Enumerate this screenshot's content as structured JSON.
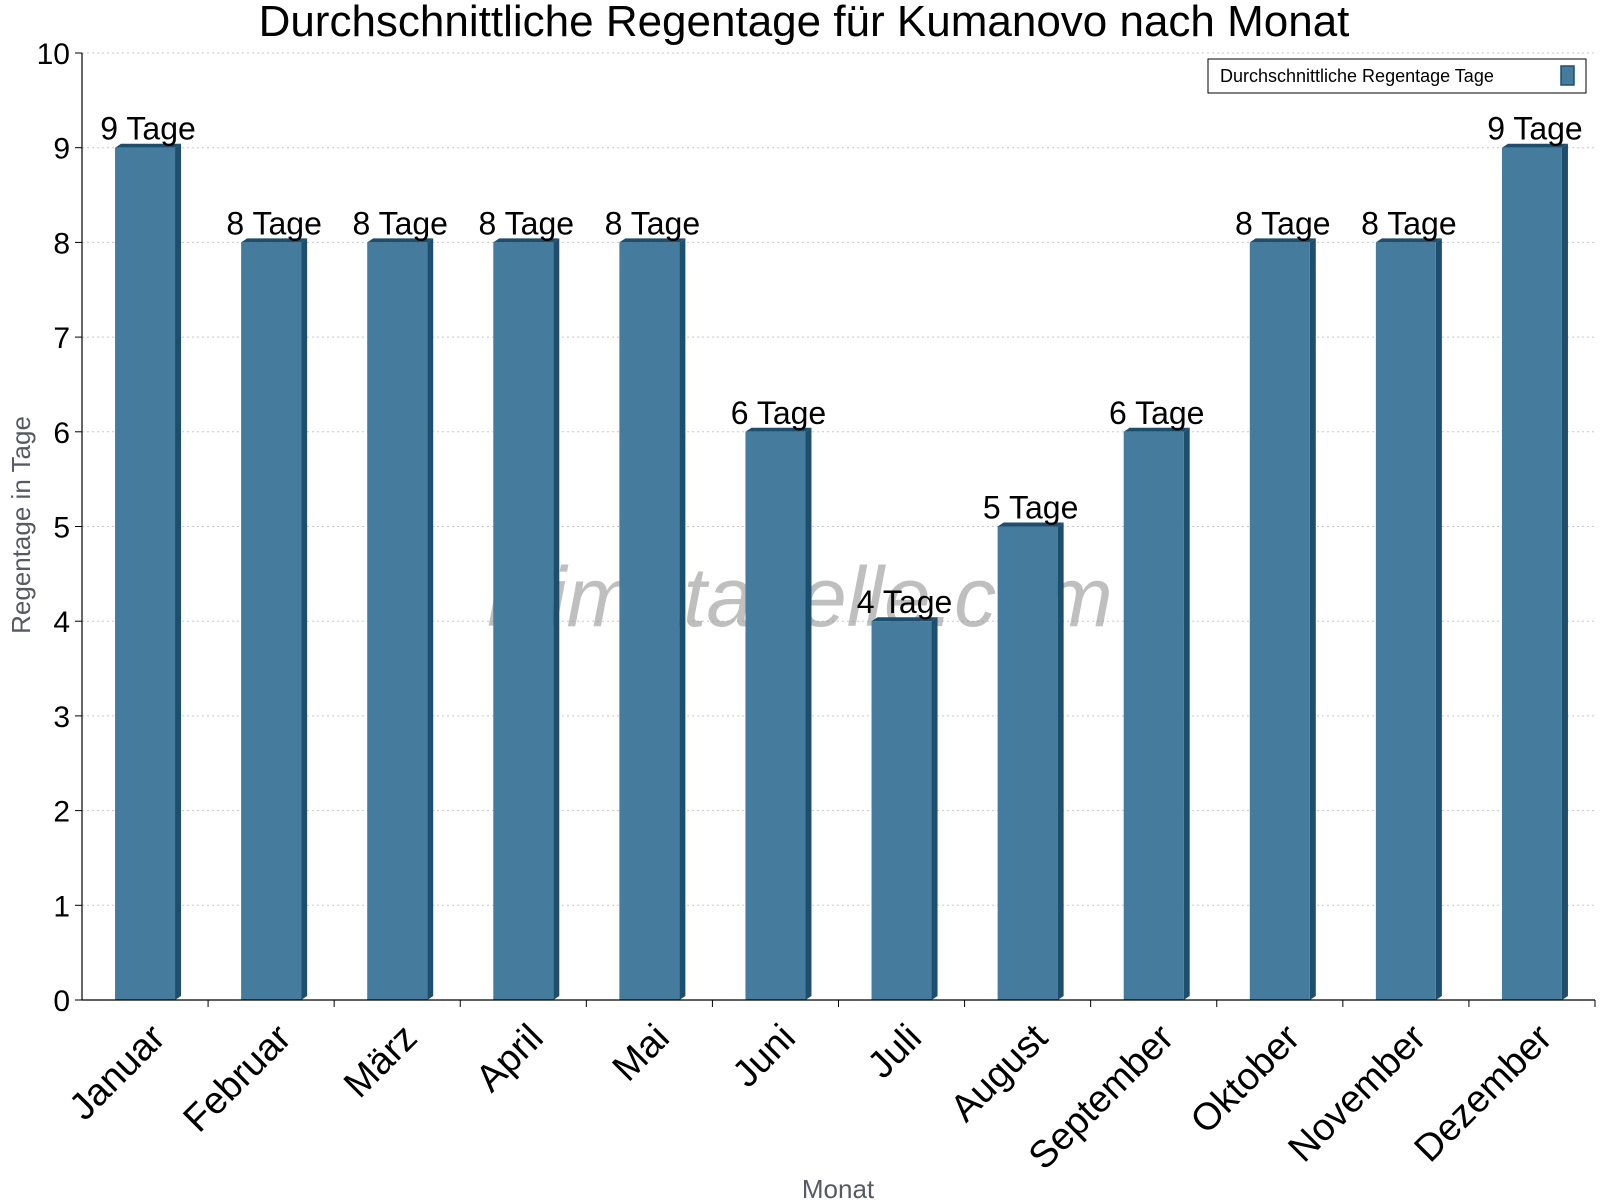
{
  "chart_data": {
    "type": "bar",
    "title": "Durchschnittliche Regentage für Kumanovo nach Monat",
    "xlabel": "Monat",
    "ylabel": "Regentage in Tage",
    "categories": [
      "Januar",
      "Februar",
      "März",
      "April",
      "Mai",
      "Juni",
      "Juli",
      "August",
      "September",
      "Oktober",
      "November",
      "Dezember"
    ],
    "series": [
      {
        "name": "Durchschnittliche Regentage Tage",
        "values": [
          9,
          8,
          8,
          8,
          8,
          6,
          4,
          5,
          6,
          8,
          8,
          9
        ],
        "labels": [
          "9 Tage",
          "8 Tage",
          "8 Tage",
          "8 Tage",
          "8 Tage",
          "6 Tage",
          "4 Tage",
          "5 Tage",
          "6 Tage",
          "8 Tage",
          "8 Tage",
          "9 Tage"
        ]
      }
    ],
    "yticks": [
      "0",
      "1",
      "2",
      "3",
      "4",
      "5",
      "6",
      "7",
      "8",
      "9",
      "10"
    ],
    "ylim": [
      0,
      10
    ],
    "grid": true,
    "legend_position": "top-right",
    "colors": {
      "bar": "#457b9d",
      "bar_side": "#1d4e6e",
      "grid": "#c8c8c8"
    },
    "watermark": "klimatabelle.com"
  }
}
